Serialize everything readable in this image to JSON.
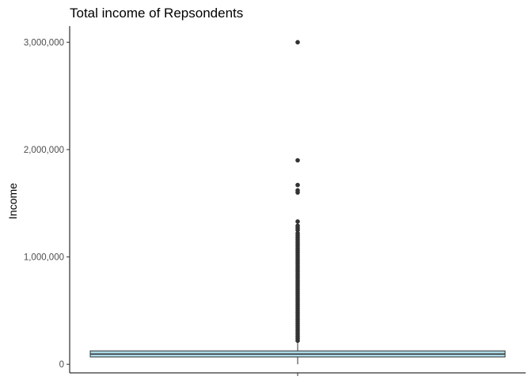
{
  "chart_data": {
    "type": "boxplot",
    "title": "Total income of Repsondents",
    "xlabel": "",
    "ylabel": "Income",
    "ylim": [
      -80000,
      3150000
    ],
    "y_ticks": [
      0,
      1000000,
      2000000,
      3000000
    ],
    "y_tick_labels": [
      "0",
      "1,000,000",
      "2,000,000",
      "3,000,000"
    ],
    "grid": false,
    "box": {
      "q1": 68000,
      "median": 95000,
      "q3": 125000,
      "whisker_low": 0,
      "whisker_high": 210000,
      "fill": "#add8e6",
      "outline": "#333333"
    },
    "outliers": [
      3000000,
      1900000,
      1670000,
      1620000,
      1600000,
      1330000,
      1290000,
      1270000,
      1250000,
      1220000,
      1200000,
      1180000,
      1160000,
      1140000,
      1120000,
      1100000,
      1080000,
      1060000,
      1040000,
      1020000,
      1000000,
      980000,
      960000,
      940000,
      920000,
      900000,
      880000,
      860000,
      840000,
      820000,
      800000,
      780000,
      760000,
      740000,
      720000,
      700000,
      680000,
      660000,
      640000,
      620000,
      600000,
      580000,
      560000,
      540000,
      520000,
      500000,
      480000,
      460000,
      440000,
      420000,
      400000,
      380000,
      360000,
      340000,
      320000,
      300000,
      280000,
      260000,
      240000,
      220000
    ],
    "point_color": "#333333"
  }
}
